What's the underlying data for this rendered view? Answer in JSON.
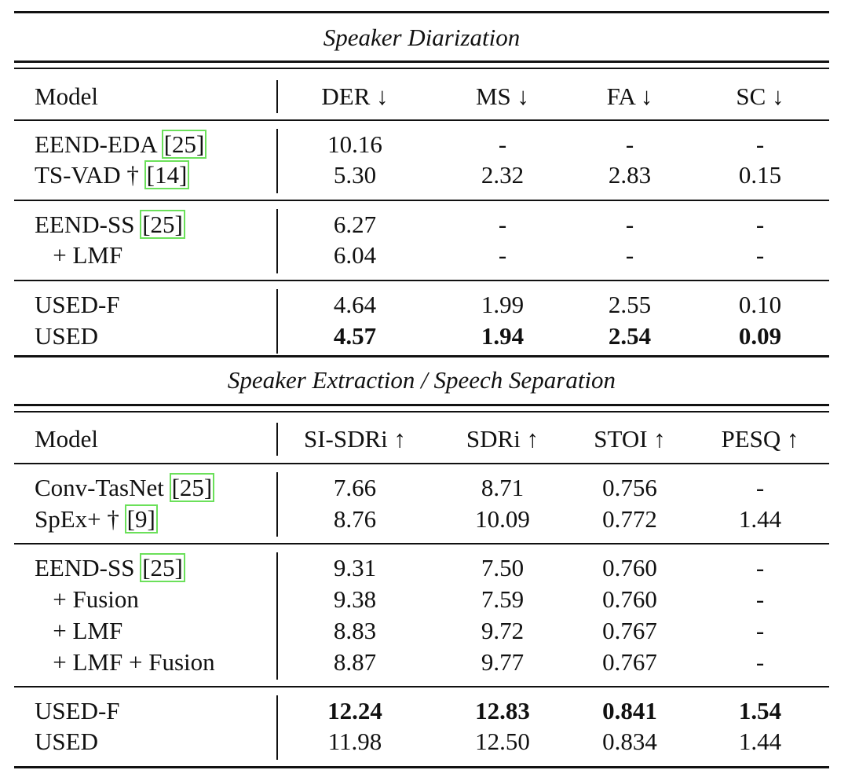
{
  "diarization": {
    "title": "Speaker Diarization",
    "header": {
      "model": "Model",
      "c1": "DER ↓",
      "c2": "MS ↓",
      "c3": "FA ↓",
      "c4": "SC ↓"
    },
    "groups": [
      [
        {
          "name": "EEND-EDA ",
          "ref": "[25]",
          "c1": "10.16",
          "c2": "-",
          "c3": "-",
          "c4": "-"
        },
        {
          "name": "TS-VAD † ",
          "ref": "[14]",
          "c1": "5.30",
          "c2": "2.32",
          "c3": "2.83",
          "c4": "0.15"
        }
      ],
      [
        {
          "name": "EEND-SS ",
          "ref": "[25]",
          "c1": "6.27",
          "c2": "-",
          "c3": "-",
          "c4": "-"
        },
        {
          "name": "   + LMF",
          "c1": "6.04",
          "c2": "-",
          "c3": "-",
          "c4": "-"
        }
      ],
      [
        {
          "name": "USED-F",
          "c1": "4.64",
          "c2": "1.99",
          "c3": "2.55",
          "c4": "0.10"
        },
        {
          "name": "USED",
          "c1": "4.57",
          "c2": "1.94",
          "c3": "2.54",
          "c4": "0.09"
        }
      ]
    ]
  },
  "extraction": {
    "title": "Speaker Extraction / Speech Separation",
    "header": {
      "model": "Model",
      "c1": "SI-SDRi ↑",
      "c2": "SDRi ↑",
      "c3": "STOI ↑",
      "c4": "PESQ ↑"
    },
    "groups": [
      [
        {
          "name": "Conv-TasNet ",
          "ref": "[25]",
          "c1": "7.66",
          "c2": "8.71",
          "c3": "0.756",
          "c4": "-"
        },
        {
          "name": "SpEx+ † ",
          "ref": "[9]",
          "c1": "8.76",
          "c2": "10.09",
          "c3": "0.772",
          "c4": "1.44"
        }
      ],
      [
        {
          "name": "EEND-SS ",
          "ref": "[25]",
          "c1": "9.31",
          "c2": "7.50",
          "c3": "0.760",
          "c4": "-"
        },
        {
          "name": "   + Fusion",
          "c1": "9.38",
          "c2": "7.59",
          "c3": "0.760",
          "c4": "-"
        },
        {
          "name": "   + LMF",
          "c1": "8.83",
          "c2": "9.72",
          "c3": "0.767",
          "c4": "-"
        },
        {
          "name": "   + LMF + Fusion",
          "c1": "8.87",
          "c2": "9.77",
          "c3": "0.767",
          "c4": "-"
        }
      ],
      [
        {
          "name": "USED-F",
          "c1": "12.24",
          "c2": "12.83",
          "c3": "0.841",
          "c4": "1.54"
        },
        {
          "name": "USED",
          "c1": "11.98",
          "c2": "12.50",
          "c3": "0.834",
          "c4": "1.44"
        }
      ]
    ]
  }
}
